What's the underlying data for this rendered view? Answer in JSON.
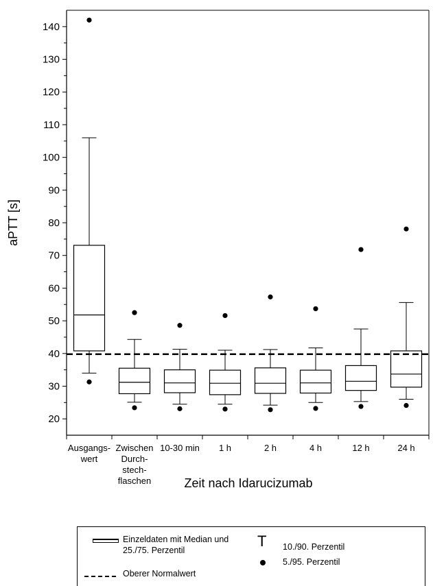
{
  "chart_data": {
    "type": "boxplot",
    "ylabel": "aPTT [s]",
    "xlabel": "Zeit nach Idarucizumab",
    "ylim": [
      15,
      145
    ],
    "yticks": [
      20,
      30,
      40,
      50,
      60,
      70,
      80,
      90,
      100,
      110,
      120,
      130,
      140
    ],
    "reference_line": {
      "value": 39.8,
      "style": "dashed",
      "label": "Oberer Normalwert"
    },
    "categories": [
      [
        "Ausgangs-",
        "wert"
      ],
      [
        "Zwischen",
        "Durch-",
        "stech-",
        "flaschen"
      ],
      [
        "10-30 min"
      ],
      [
        "1 h"
      ],
      [
        "2 h"
      ],
      [
        "4 h"
      ],
      [
        "12 h"
      ],
      [
        "24 h"
      ]
    ],
    "boxes": [
      {
        "p5": 31.3,
        "p10": 34.0,
        "q1": 40.8,
        "median": 51.8,
        "q3": 73.1,
        "p90": 106.0,
        "p95": 142.0
      },
      {
        "p5": 23.4,
        "p10": 25.1,
        "q1": 27.7,
        "median": 31.2,
        "q3": 35.5,
        "p90": 44.3,
        "p95": 52.5
      },
      {
        "p5": 23.1,
        "p10": 24.5,
        "q1": 28.0,
        "median": 31.0,
        "q3": 35.0,
        "p90": 41.3,
        "p95": 48.6
      },
      {
        "p5": 23.0,
        "p10": 24.5,
        "q1": 27.4,
        "median": 30.9,
        "q3": 34.9,
        "p90": 41.0,
        "p95": 51.6
      },
      {
        "p5": 22.8,
        "p10": 24.2,
        "q1": 27.8,
        "median": 30.9,
        "q3": 35.6,
        "p90": 41.2,
        "p95": 57.3
      },
      {
        "p5": 23.2,
        "p10": 25.0,
        "q1": 27.9,
        "median": 31.0,
        "q3": 34.9,
        "p90": 41.7,
        "p95": 53.7
      },
      {
        "p5": 23.8,
        "p10": 25.3,
        "q1": 28.7,
        "median": 31.5,
        "q3": 36.3,
        "p90": 47.5,
        "p95": 71.8
      },
      {
        "p5": 24.1,
        "p10": 26.0,
        "q1": 29.7,
        "median": 33.7,
        "q3": 40.8,
        "p90": 55.6,
        "p95": 78.1
      }
    ]
  },
  "legend": {
    "box": "Einzeldaten mit Median und",
    "box2": "25./75. Perzentil",
    "whisker_symbol": "T",
    "whisker": "10./90. Perzentil",
    "dot": "5./95. Perzentil",
    "dashed": "Oberer Normalwert"
  }
}
